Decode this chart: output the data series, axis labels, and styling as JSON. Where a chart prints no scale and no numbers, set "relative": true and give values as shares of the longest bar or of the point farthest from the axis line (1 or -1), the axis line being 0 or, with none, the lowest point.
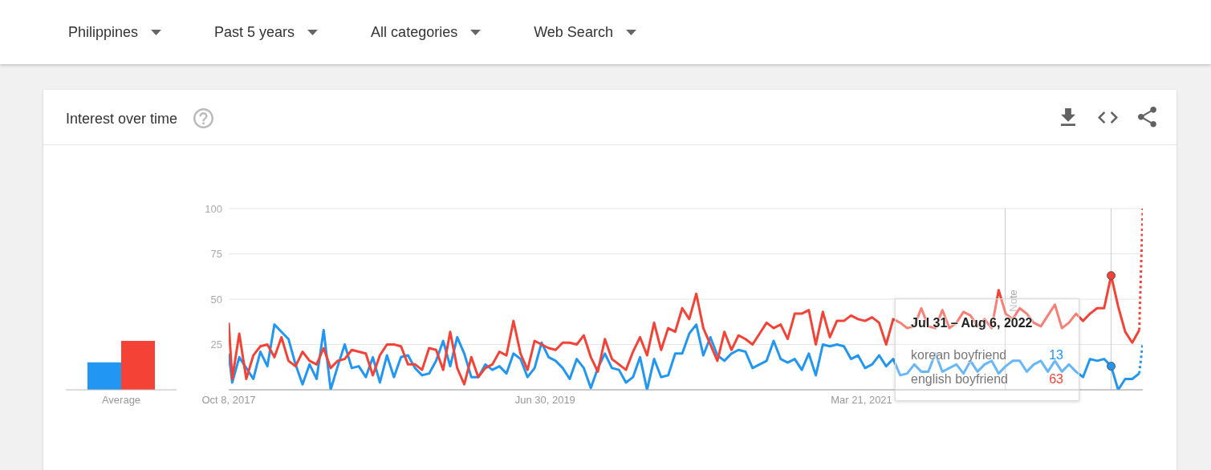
{
  "chart_data": [
    {
      "type": "bar",
      "relative": true,
      "categories": [
        "Average"
      ],
      "series": [
        {
          "color": "#2196f3",
          "values": [
            0.56
          ]
        },
        {
          "color": "#f44336",
          "values": [
            1
          ]
        }
      ]
    },
    {
      "type": "line",
      "title": "Interest over time",
      "annotations": [
        "Philippines",
        "Past 5 years",
        "All categories",
        "Web Search"
      ],
      "x": [
        "2017-10-08",
        "2017-10-15",
        "2017-10-29",
        "2017-11-12",
        "2017-11-26",
        "2017-12-10",
        "2017-12-24",
        "2018-01-07",
        "2018-01-21",
        "2018-02-04",
        "2018-02-18",
        "2018-03-04",
        "2018-03-18",
        "2018-04-01",
        "2018-04-15",
        "2018-04-29",
        "2018-05-13",
        "2018-05-27",
        "2018-06-10",
        "2018-06-24",
        "2018-07-08",
        "2018-07-22",
        "2018-08-05",
        "2018-08-19",
        "2018-09-02",
        "2018-09-16",
        "2018-09-30",
        "2018-10-14",
        "2018-10-28",
        "2018-11-11",
        "2018-11-25",
        "2018-12-09",
        "2018-12-23",
        "2019-01-06",
        "2019-01-20",
        "2019-02-03",
        "2019-02-17",
        "2019-03-03",
        "2019-03-17",
        "2019-03-31",
        "2019-04-14",
        "2019-04-28",
        "2019-05-12",
        "2019-05-26",
        "2019-06-09",
        "2019-06-23",
        "2019-07-07",
        "2019-07-21",
        "2019-08-04",
        "2019-08-18",
        "2019-09-01",
        "2019-09-15",
        "2019-09-29",
        "2019-10-13",
        "2019-10-27",
        "2019-11-10",
        "2019-11-24",
        "2019-12-08",
        "2019-12-22",
        "2020-01-05",
        "2020-01-19",
        "2020-02-02",
        "2020-02-16",
        "2020-03-01",
        "2020-03-15",
        "2020-03-29",
        "2020-04-12",
        "2020-04-26",
        "2020-05-10",
        "2020-05-24",
        "2020-06-07",
        "2020-06-21",
        "2020-07-05",
        "2020-07-19",
        "2020-08-02",
        "2020-08-16",
        "2020-08-30",
        "2020-09-13",
        "2020-09-27",
        "2020-10-11",
        "2020-10-25",
        "2020-11-08",
        "2020-11-22",
        "2020-12-06",
        "2020-12-20",
        "2021-01-03",
        "2021-01-17",
        "2021-01-31",
        "2021-02-14",
        "2021-02-28",
        "2021-03-14",
        "2021-03-28",
        "2021-04-11",
        "2021-04-25",
        "2021-05-09",
        "2021-05-23",
        "2021-06-06",
        "2021-06-20",
        "2021-07-04",
        "2021-07-18",
        "2021-08-01",
        "2021-08-15",
        "2021-08-29",
        "2021-09-12",
        "2021-09-26",
        "2021-10-10",
        "2021-10-24",
        "2021-11-07",
        "2021-11-21",
        "2021-12-05",
        "2021-12-19",
        "2022-01-02",
        "2022-01-16",
        "2022-01-30",
        "2022-02-13",
        "2022-02-27",
        "2022-03-13",
        "2022-03-27",
        "2022-04-10",
        "2022-04-24",
        "2022-05-08",
        "2022-05-22",
        "2022-06-05",
        "2022-06-19",
        "2022-07-03",
        "2022-07-17",
        "2022-07-31",
        "2022-08-14",
        "2022-08-28",
        "2022-09-11",
        "2022-09-25"
      ],
      "xlim": [
        "2017-10-08",
        "2022-10-02"
      ],
      "xticks": [
        {
          "value": "2017-10-08",
          "label": "Oct 8, 2017"
        },
        {
          "value": "2019-06-30",
          "label": "Jun 30, 2019"
        },
        {
          "value": "2021-03-21",
          "label": "Mar 21, 2021"
        }
      ],
      "ylim": [
        0,
        100
      ],
      "yticks": [
        {
          "value": 0,
          "label": null
        },
        25,
        50,
        75,
        100
      ],
      "grid": "y",
      "ref_lines": [
        {
          "axis": "x",
          "value": "2022-01-01",
          "label": "Note",
          "color": "#cccccc"
        },
        {
          "axis": "x",
          "value": "2022-07-31",
          "color": "#cccccc"
        }
      ],
      "series": [
        {
          "color": "#2196f3",
          "values": [
            20,
            4,
            18,
            12,
            6,
            21,
            13,
            36,
            32,
            28,
            14,
            3,
            14,
            6,
            33,
            0,
            13,
            25,
            12,
            13,
            7,
            18,
            4,
            19,
            7,
            18,
            19,
            12,
            8,
            9,
            16,
            27,
            13,
            29,
            20,
            7,
            7,
            14,
            11,
            13,
            9,
            20,
            17,
            7,
            12,
            26,
            18,
            16,
            12,
            6,
            17,
            12,
            1,
            12,
            20,
            12,
            11,
            4,
            7,
            18,
            0,
            17,
            7,
            8,
            20,
            20,
            31,
            36,
            19,
            29,
            19,
            16,
            20,
            22,
            21,
            12,
            14,
            16,
            27,
            17,
            15,
            17,
            11,
            20,
            8,
            25,
            24,
            25,
            24,
            17,
            19,
            12,
            14,
            19,
            13,
            17,
            8,
            9,
            14,
            10,
            10,
            20,
            10,
            12,
            14,
            9,
            16,
            10,
            14,
            16,
            9,
            13,
            16,
            16,
            10,
            14,
            16,
            10,
            16,
            10,
            14,
            10,
            7,
            17,
            16,
            17,
            13,
            0,
            6,
            6,
            9
          ]
        },
        {
          "color": "#f44336",
          "values": [
            37,
            6,
            31,
            6,
            19,
            24,
            25,
            18,
            29,
            16,
            13,
            21,
            16,
            14,
            23,
            12,
            16,
            17,
            22,
            21,
            20,
            8,
            19,
            25,
            25,
            24,
            14,
            14,
            11,
            23,
            22,
            11,
            32,
            12,
            3,
            18,
            7,
            12,
            14,
            21,
            19,
            38,
            20,
            11,
            27,
            25,
            23,
            22,
            26,
            26,
            25,
            30,
            18,
            10,
            28,
            17,
            14,
            11,
            21,
            29,
            19,
            37,
            22,
            34,
            32,
            45,
            39,
            53,
            34,
            25,
            16,
            32,
            22,
            30,
            28,
            25,
            31,
            37,
            34,
            36,
            28,
            42,
            42,
            44,
            25,
            43,
            29,
            38,
            38,
            41,
            39,
            38,
            40,
            37,
            25,
            39,
            37,
            34,
            35,
            45,
            35,
            34,
            44,
            34,
            37,
            43,
            41,
            35,
            39,
            34,
            55,
            42,
            39,
            45,
            42,
            37,
            35,
            41,
            47,
            34,
            37,
            42,
            38,
            42,
            45,
            45,
            63,
            46,
            32,
            26,
            33
          ]
        },
        {
          "color": "#2196f3",
          "x": [
            "2022-09-25",
            "2022-10-02"
          ],
          "values": [
            9,
            26
          ],
          "line_style": "dotted"
        },
        {
          "color": "#f44336",
          "x": [
            "2022-09-25",
            "2022-10-02"
          ],
          "values": [
            33,
            100
          ],
          "line_style": "dotted"
        },
        {
          "type": "scatter",
          "color": "#2196f3",
          "x": [
            "2022-07-31"
          ],
          "values": [
            13
          ]
        },
        {
          "type": "scatter",
          "color": "#f44336",
          "x": [
            "2022-07-31"
          ],
          "values": [
            63
          ]
        }
      ]
    },
    {
      "type": "other",
      "title": "Jul 31 – Aug 6, 2022",
      "categories": [
        "korean boyfriend",
        "english boyfriend"
      ],
      "values": [
        13,
        63
      ],
      "data_labels": true
    }
  ]
}
